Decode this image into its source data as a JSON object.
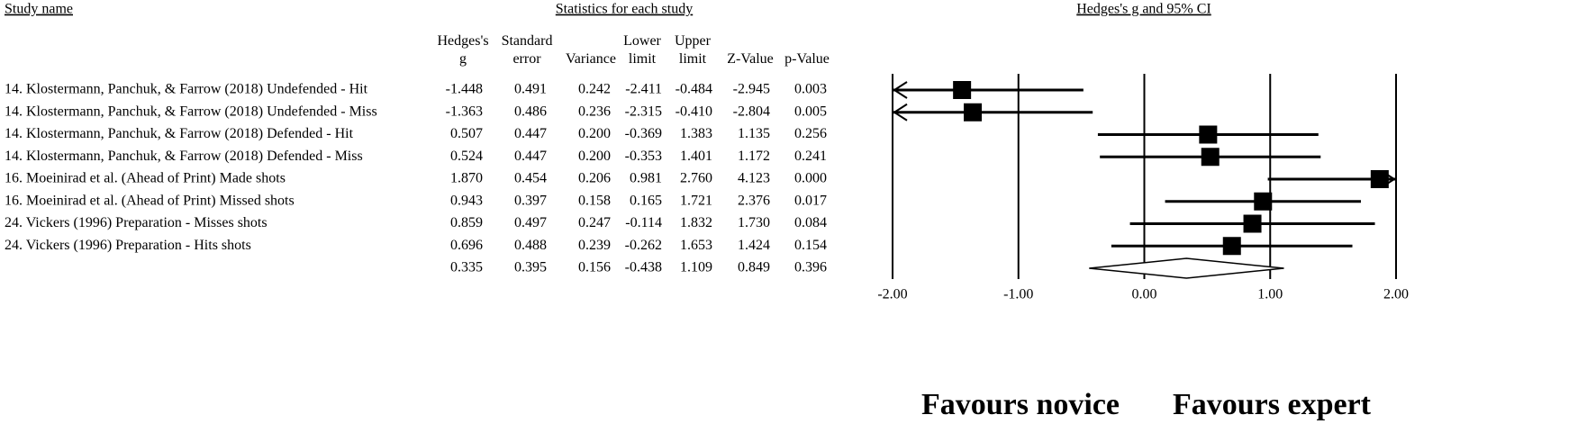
{
  "chart_data": {
    "type": "forest",
    "study_header": "Study name",
    "stats_header": "Statistics for each study",
    "title": "Hedges's g and 95% CI",
    "categories": [
      "14. Klostermann, Panchuk, & Farrow (2018) Undefended - Hit",
      "14. Klostermann, Panchuk, & Farrow (2018) Undefended - Miss",
      "14. Klostermann, Panchuk, & Farrow (2018) Defended - Hit",
      "14. Klostermann, Panchuk, & Farrow (2018) Defended - Miss",
      "16. Moeinirad et al. (Ahead of Print) Made shots",
      "16. Moeinirad et al. (Ahead of Print) Missed shots",
      "24. Vickers (1996) Preparation - Misses shots",
      "24. Vickers (1996) Preparation - Hits shots",
      null
    ],
    "series": [
      {
        "name": "Hedges's g",
        "values": [
          -1.448,
          -1.363,
          0.507,
          0.524,
          1.87,
          0.943,
          0.859,
          0.696,
          0.335
        ],
        "value_labels": [
          "-1.448",
          "-1.363",
          "0.507",
          "0.524",
          "1.870",
          "0.943",
          "0.859",
          "0.696",
          "0.335"
        ]
      },
      {
        "name": "Standard error",
        "values": [
          0.491,
          0.486,
          0.447,
          0.447,
          0.454,
          0.397,
          0.497,
          0.488,
          0.395
        ],
        "value_labels": [
          "0.491",
          "0.486",
          "0.447",
          "0.447",
          "0.454",
          "0.397",
          "0.497",
          "0.488",
          "0.395"
        ]
      },
      {
        "name": "Variance",
        "values": [
          0.242,
          0.236,
          0.2,
          0.2,
          0.206,
          0.158,
          0.247,
          0.239,
          0.156
        ],
        "value_labels": [
          "0.242",
          "0.236",
          "0.200",
          "0.200",
          "0.206",
          "0.158",
          "0.247",
          "0.239",
          "0.156"
        ]
      },
      {
        "name": "Lower limit",
        "values": [
          -2.411,
          -2.315,
          -0.369,
          -0.353,
          0.981,
          0.165,
          -0.114,
          -0.262,
          -0.438
        ],
        "value_labels": [
          "-2.411",
          "-2.315",
          "-0.369",
          "-0.353",
          "0.981",
          "0.165",
          "-0.114",
          "-0.262",
          "-0.438"
        ]
      },
      {
        "name": "Upper limit",
        "values": [
          -0.484,
          -0.41,
          1.383,
          1.401,
          2.76,
          1.721,
          1.832,
          1.653,
          1.109
        ],
        "value_labels": [
          "-0.484",
          "-0.410",
          "1.383",
          "1.401",
          "2.760",
          "1.721",
          "1.832",
          "1.653",
          "1.109"
        ]
      },
      {
        "name": "Z-Value",
        "values": [
          -2.945,
          -2.804,
          1.135,
          1.172,
          4.123,
          2.376,
          1.73,
          1.424,
          0.849
        ],
        "value_labels": [
          "-2.945",
          "-2.804",
          "1.135",
          "1.172",
          "4.123",
          "2.376",
          "1.730",
          "1.424",
          "0.849"
        ]
      },
      {
        "name": "p-Value",
        "values": [
          0.003,
          0.005,
          0.256,
          0.241,
          0.0,
          0.017,
          0.084,
          0.154,
          0.396
        ],
        "value_labels": [
          "0.003",
          "0.005",
          "0.256",
          "0.241",
          "0.000",
          "0.017",
          "0.084",
          "0.154",
          "0.396"
        ]
      }
    ],
    "xlim": [
      -2,
      2
    ],
    "xticks": [
      {
        "value": -2,
        "label": "-2.00"
      },
      {
        "value": -1,
        "label": "-1.00"
      },
      {
        "value": 0,
        "label": "0.00"
      },
      {
        "value": 1,
        "label": "1.00"
      },
      {
        "value": 2,
        "label": "2.00"
      }
    ],
    "annotations": [
      "Favours novice",
      "Favours expert"
    ]
  }
}
